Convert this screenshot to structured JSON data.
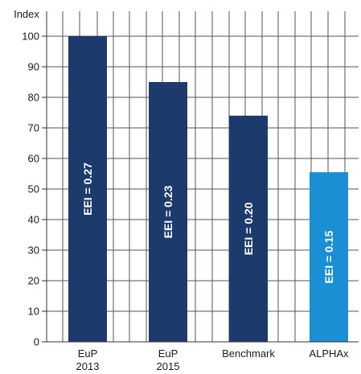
{
  "chart_data": {
    "type": "bar",
    "ylabel": "Index",
    "ylim": [
      0,
      100
    ],
    "yticks": [
      0,
      10,
      20,
      30,
      40,
      50,
      60,
      70,
      80,
      90,
      100
    ],
    "categories": [
      [
        "EuP",
        "2013"
      ],
      [
        "EuP",
        "2015"
      ],
      [
        "Benchmark"
      ],
      [
        "ALPHAx"
      ]
    ],
    "values": [
      100,
      85,
      74,
      55.5
    ],
    "bar_labels": [
      "EEI = 0.27",
      "EEI = 0.23",
      "EEI = 0.20",
      "EEI = 0.15"
    ],
    "colors": [
      "#1c3a6b",
      "#1c3a6b",
      "#1c3a6b",
      "#1a8fd3"
    ],
    "grid": true
  }
}
